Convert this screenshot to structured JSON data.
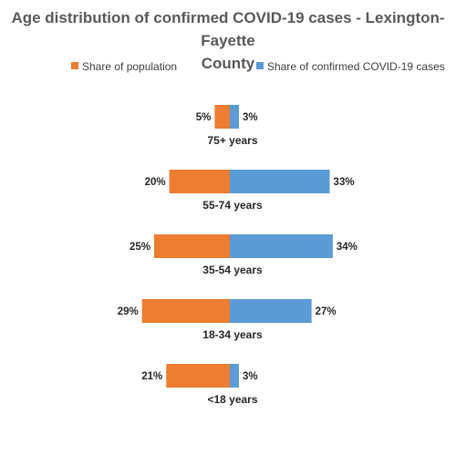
{
  "chart_data": {
    "type": "bar",
    "orientation": "horizontal-diverging",
    "title": "Age distribution of confirmed COVID-19 cases -  Lexington-Fayette County",
    "title_lines": [
      "Age distribution of confirmed COVID-19 cases -  Lexington-Fayette",
      "County"
    ],
    "categories": [
      "75+ years",
      "55-74 years",
      "35-54 years",
      "18-34 years",
      "<18 years"
    ],
    "series": [
      {
        "name": "Share of population",
        "color": "#ED7D31",
        "direction": "left",
        "values": [
          5,
          20,
          25,
          29,
          21
        ],
        "labels": [
          "5%",
          "20%",
          "25%",
          "29%",
          "21%"
        ]
      },
      {
        "name": "Share of confirmed COVID-19 cases",
        "color": "#5B9BD5",
        "direction": "right",
        "values": [
          3,
          33,
          34,
          27,
          3
        ],
        "labels": [
          "3%",
          "33%",
          "34%",
          "27%",
          "3%"
        ]
      }
    ],
    "unit": "%",
    "legend_position": "top",
    "grid": false,
    "axes_visible": false
  }
}
